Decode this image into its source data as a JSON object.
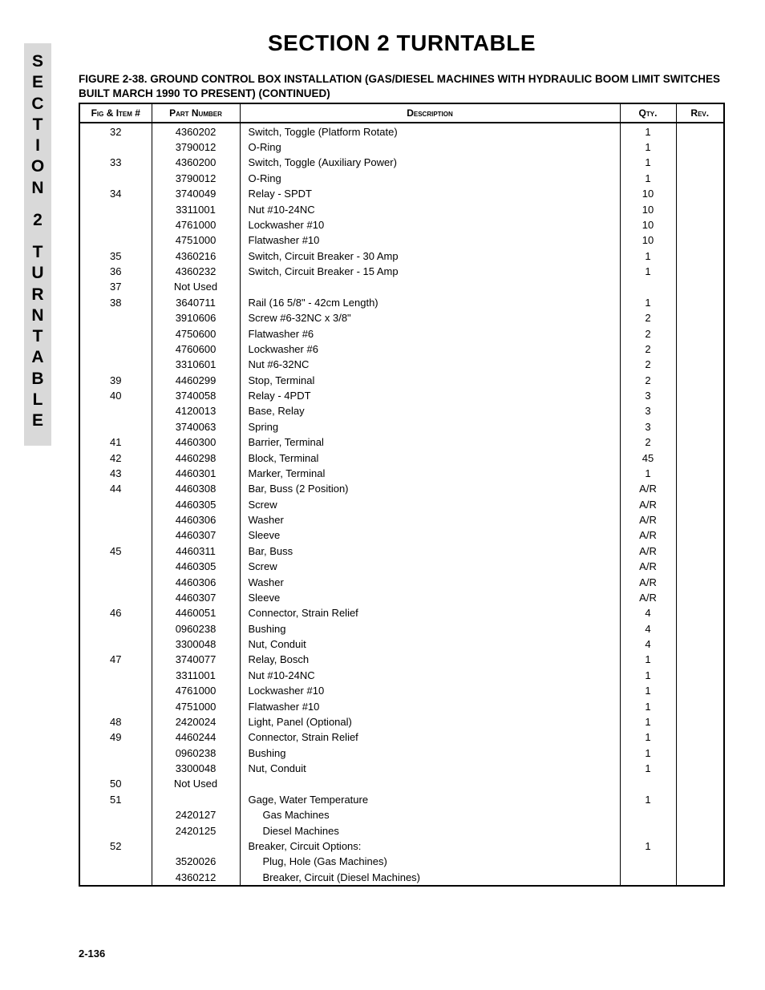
{
  "sideTab": {
    "line1": [
      "S",
      "E",
      "C",
      "T",
      "I",
      "O",
      "N"
    ],
    "line2": [
      "2"
    ],
    "line3": [
      "T",
      "U",
      "R",
      "N",
      "T",
      "A",
      "B",
      "L",
      "E"
    ]
  },
  "sectionTitle": "SECTION 2   TURNTABLE",
  "figureCaption": "FIGURE 2-38.  GROUND CONTROL BOX INSTALLATION (GAS/DIESEL MACHINES WITH HYDRAULIC BOOM LIMIT SWITCHES BUILT MARCH 1990 TO PRESENT) (CONTINUED)",
  "columns": {
    "fig": "Fig & Item #",
    "part": "Part Number",
    "desc": "Description",
    "qty": "Qty.",
    "rev": "Rev."
  },
  "rows": [
    {
      "fig": "32",
      "part": "4360202",
      "desc": "Switch, Toggle (Platform Rotate)",
      "qty": "1",
      "indent": 0
    },
    {
      "fig": "",
      "part": "3790012",
      "desc": "O-Ring",
      "qty": "1",
      "indent": 0
    },
    {
      "fig": "33",
      "part": "4360200",
      "desc": "Switch, Toggle (Auxiliary Power)",
      "qty": "1",
      "indent": 0
    },
    {
      "fig": "",
      "part": "3790012",
      "desc": "O-Ring",
      "qty": "1",
      "indent": 0
    },
    {
      "fig": "34",
      "part": "3740049",
      "desc": "Relay - SPDT",
      "qty": "10",
      "indent": 0
    },
    {
      "fig": "",
      "part": "3311001",
      "desc": "Nut #10-24NC",
      "qty": "10",
      "indent": 0
    },
    {
      "fig": "",
      "part": "4761000",
      "desc": "Lockwasher #10",
      "qty": "10",
      "indent": 0
    },
    {
      "fig": "",
      "part": "4751000",
      "desc": "Flatwasher #10",
      "qty": "10",
      "indent": 0
    },
    {
      "fig": "35",
      "part": "4360216",
      "desc": "Switch, Circuit Breaker - 30 Amp",
      "qty": "1",
      "indent": 0
    },
    {
      "fig": "36",
      "part": "4360232",
      "desc": "Switch, Circuit Breaker - 15 Amp",
      "qty": "1",
      "indent": 0
    },
    {
      "fig": "37",
      "part": "Not Used",
      "desc": "",
      "qty": "",
      "indent": 0
    },
    {
      "fig": "38",
      "part": "3640711",
      "desc": "Rail (16 5/8\" - 42cm Length)",
      "qty": "1",
      "indent": 0
    },
    {
      "fig": "",
      "part": "3910606",
      "desc": "Screw #6-32NC x 3/8\"",
      "qty": "2",
      "indent": 0
    },
    {
      "fig": "",
      "part": "4750600",
      "desc": "Flatwasher #6",
      "qty": "2",
      "indent": 0
    },
    {
      "fig": "",
      "part": "4760600",
      "desc": "Lockwasher #6",
      "qty": "2",
      "indent": 0
    },
    {
      "fig": "",
      "part": "3310601",
      "desc": "Nut #6-32NC",
      "qty": "2",
      "indent": 0
    },
    {
      "fig": "39",
      "part": "4460299",
      "desc": "Stop, Terminal",
      "qty": "2",
      "indent": 0
    },
    {
      "fig": "40",
      "part": "3740058",
      "desc": "Relay - 4PDT",
      "qty": "3",
      "indent": 0
    },
    {
      "fig": "",
      "part": "4120013",
      "desc": "Base, Relay",
      "qty": "3",
      "indent": 0
    },
    {
      "fig": "",
      "part": "3740063",
      "desc": "Spring",
      "qty": "3",
      "indent": 0
    },
    {
      "fig": "41",
      "part": "4460300",
      "desc": "Barrier, Terminal",
      "qty": "2",
      "indent": 0
    },
    {
      "fig": "42",
      "part": "4460298",
      "desc": "Block, Terminal",
      "qty": "45",
      "indent": 0
    },
    {
      "fig": "43",
      "part": "4460301",
      "desc": "Marker, Terminal",
      "qty": "1",
      "indent": 0
    },
    {
      "fig": "44",
      "part": "4460308",
      "desc": "Bar, Buss (2 Position)",
      "qty": "A/R",
      "indent": 0
    },
    {
      "fig": "",
      "part": "4460305",
      "desc": "Screw",
      "qty": "A/R",
      "indent": 0
    },
    {
      "fig": "",
      "part": "4460306",
      "desc": "Washer",
      "qty": "A/R",
      "indent": 0
    },
    {
      "fig": "",
      "part": "4460307",
      "desc": "Sleeve",
      "qty": "A/R",
      "indent": 0
    },
    {
      "fig": "45",
      "part": "4460311",
      "desc": "Bar, Buss",
      "qty": "A/R",
      "indent": 0
    },
    {
      "fig": "",
      "part": "4460305",
      "desc": "Screw",
      "qty": "A/R",
      "indent": 0
    },
    {
      "fig": "",
      "part": "4460306",
      "desc": "Washer",
      "qty": "A/R",
      "indent": 0
    },
    {
      "fig": "",
      "part": "4460307",
      "desc": "Sleeve",
      "qty": "A/R",
      "indent": 0
    },
    {
      "fig": "46",
      "part": "4460051",
      "desc": "Connector, Strain Relief",
      "qty": "4",
      "indent": 0
    },
    {
      "fig": "",
      "part": "0960238",
      "desc": "Bushing",
      "qty": "4",
      "indent": 0
    },
    {
      "fig": "",
      "part": "3300048",
      "desc": "Nut, Conduit",
      "qty": "4",
      "indent": 0
    },
    {
      "fig": "47",
      "part": "3740077",
      "desc": "Relay, Bosch",
      "qty": "1",
      "indent": 0
    },
    {
      "fig": "",
      "part": "3311001",
      "desc": "Nut #10-24NC",
      "qty": "1",
      "indent": 0
    },
    {
      "fig": "",
      "part": "4761000",
      "desc": "Lockwasher #10",
      "qty": "1",
      "indent": 0
    },
    {
      "fig": "",
      "part": "4751000",
      "desc": "Flatwasher #10",
      "qty": "1",
      "indent": 0
    },
    {
      "fig": "48",
      "part": "2420024",
      "desc": "Light, Panel (Optional)",
      "qty": "1",
      "indent": 0
    },
    {
      "fig": "49",
      "part": "4460244",
      "desc": "Connector, Strain Relief",
      "qty": "1",
      "indent": 0
    },
    {
      "fig": "",
      "part": "0960238",
      "desc": "Bushing",
      "qty": "1",
      "indent": 0
    },
    {
      "fig": "",
      "part": "3300048",
      "desc": "Nut, Conduit",
      "qty": "1",
      "indent": 0
    },
    {
      "fig": "50",
      "part": "Not Used",
      "desc": "",
      "qty": "",
      "indent": 0
    },
    {
      "fig": "51",
      "part": "",
      "desc": "Gage, Water Temperature",
      "qty": "1",
      "indent": 0
    },
    {
      "fig": "",
      "part": "2420127",
      "desc": "Gas Machines",
      "qty": "",
      "indent": 1
    },
    {
      "fig": "",
      "part": "2420125",
      "desc": "Diesel Machines",
      "qty": "",
      "indent": 1
    },
    {
      "fig": "52",
      "part": "",
      "desc": "Breaker, Circuit Options:",
      "qty": "1",
      "indent": 0
    },
    {
      "fig": "",
      "part": "3520026",
      "desc": "Plug, Hole (Gas Machines)",
      "qty": "",
      "indent": 1
    },
    {
      "fig": "",
      "part": "4360212",
      "desc": "Breaker, Circuit (Diesel Machines)",
      "qty": "",
      "indent": 1
    }
  ],
  "pageNumber": "2-136",
  "style": {
    "indentPx": 18,
    "background": "#ffffff",
    "tabBackground": "#d9d9d9",
    "border": "#000000"
  }
}
